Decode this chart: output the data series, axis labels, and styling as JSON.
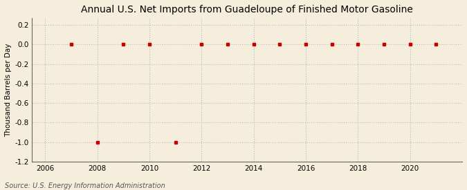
{
  "title": "Annual U.S. Net Imports from Guadeloupe of Finished Motor Gasoline",
  "ylabel": "Thousand Barrels per Day",
  "source": "Source: U.S. Energy Information Administration",
  "years": [
    2007,
    2008,
    2009,
    2010,
    2011,
    2012,
    2013,
    2014,
    2015,
    2016,
    2017,
    2018,
    2019,
    2020,
    2021
  ],
  "values": [
    0,
    -1,
    0,
    0,
    -1,
    0,
    0,
    0,
    0,
    0,
    0,
    0,
    0,
    0,
    0
  ],
  "xlim": [
    2005.5,
    2022.0
  ],
  "ylim": [
    -1.2,
    0.27
  ],
  "yticks": [
    0.2,
    0.0,
    -0.2,
    -0.4,
    -0.6,
    -0.8,
    -1.0,
    -1.2
  ],
  "xticks": [
    2006,
    2008,
    2010,
    2012,
    2014,
    2016,
    2018,
    2020
  ],
  "marker_color": "#cc0000",
  "marker": "s",
  "marker_size": 3.5,
  "bg_color": "#f5eedc",
  "plot_bg_color": "#f5eedc",
  "grid_color": "#bbbbbb",
  "grid_color_x": "#aabbcc",
  "title_fontsize": 10,
  "label_fontsize": 7.5,
  "tick_fontsize": 7.5,
  "source_fontsize": 7
}
